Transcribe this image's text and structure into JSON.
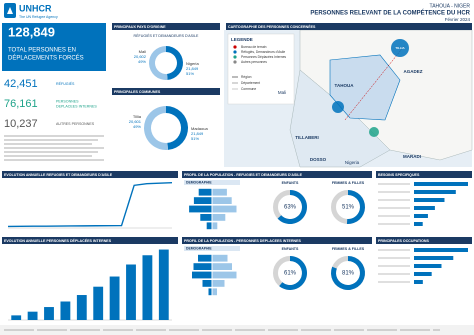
{
  "header": {
    "logo": "UNHCR",
    "logo_sub": "The UN Refugee Agency",
    "location": "TAHOUA - NIGER",
    "title": "PERSONNES RELEVANT DE LA COMPÉTENCE DU HCR",
    "date": "Février 2024"
  },
  "kpis": {
    "total": {
      "value": "128,849",
      "label": [
        "TOTAL PERSONNES EN",
        "DÉPLACEMENTS FORCÉS"
      ]
    },
    "items": [
      {
        "value": "42,451",
        "label": [
          "RÉFUGIÉS"
        ],
        "color": "#0072bc"
      },
      {
        "value": "76,161",
        "label": [
          "PERSONNES",
          "DEPLACEES INTERNES"
        ],
        "color": "#1fa38a"
      },
      {
        "value": "10,237",
        "label": [
          "AUTRES PERSONNES"
        ],
        "color": "#555555"
      }
    ]
  },
  "map": {
    "title": "CARTOGRAPHIE DES PERSONNES CONCERNÉES",
    "legend_title": "LEGENDE",
    "legend": [
      "Bureau de terrain",
      "Réfugiés, Demandeurs d'Asile",
      "Personnes Déplacées Internes",
      "Autres personnes",
      "Région",
      "Département",
      "Commune"
    ],
    "labels": [
      "AGADEZ",
      "TAHOUA",
      "Mali",
      "TILLABERI",
      "DOSSO",
      "MARADI",
      "Nigeria",
      "TILLIA"
    ]
  },
  "sections": {
    "profile_refugees": "PROFIL DE LA POPULATION - REFUGIES ET DEMANDEURS D'ASILE",
    "profile_idp": "PROFIL DE LA POPULATION - PERSONNES DEPLACEES INTERNES",
    "demography": "DEMOGRAPHIE",
    "needs": "BESOINS SPECIFIQUES",
    "occupations": "PRINCIPALES OCCUPATIONS"
  },
  "chart_data": [
    {
      "type": "pie",
      "title": "PRINCIPAUX PAYS D'ORIGINE",
      "subtitle": "RÉFUGIÉS ET DEMANDEURS D'ASILE",
      "categories": [
        "Mali",
        "Nigeria"
      ],
      "values": [
        20602,
        21849
      ],
      "value_labels": [
        "20,602",
        "21,849"
      ],
      "percent_labels": [
        "49%",
        "51%"
      ],
      "colors": [
        "#0072bc",
        "#9cc6e8"
      ]
    },
    {
      "type": "pie",
      "title": "PRINCIPALES COMMUNES",
      "categories": [
        "Tillia",
        "Madaoua"
      ],
      "values": [
        20601,
        21849
      ],
      "value_labels": [
        "20,601",
        "21,849"
      ],
      "percent_labels": [
        "49%",
        "51%"
      ],
      "colors": [
        "#0072bc",
        "#9cc6e8"
      ]
    },
    {
      "type": "line",
      "title": "EVOLUTION ANNUELLE REFUGIES ET DEMANDEURS D'ASILE",
      "values": [
        1500,
        1600,
        1700,
        1700,
        1800,
        1900,
        2000,
        2100,
        2200,
        2300,
        40000,
        41500,
        42000,
        42451
      ],
      "ylim": [
        0,
        45000
      ],
      "color": "#0072bc"
    },
    {
      "type": "bar",
      "title": "EVOLUTION ANNUELLE PERSONNES DÉPLACÉES INTERNES",
      "values": [
        5000,
        9000,
        14000,
        20000,
        27000,
        36000,
        47000,
        60000,
        70000,
        76161
      ],
      "ylim": [
        0,
        80000
      ],
      "color": "#0072bc"
    },
    {
      "type": "pyramid",
      "series": [
        {
          "values": [
            8,
            11,
            14,
            7,
            3
          ],
          "color": "#0072bc"
        },
        {
          "values": [
            9,
            12,
            15,
            8,
            3
          ],
          "color": "#9cc6e8"
        }
      ]
    },
    {
      "type": "donut",
      "title": "ENFANTS",
      "values": [
        63
      ],
      "value_labels": [
        "63%"
      ],
      "color": "#0072bc"
    },
    {
      "type": "donut",
      "title": "FEMMES & FILLES",
      "values": [
        51
      ],
      "value_labels": [
        "51%"
      ],
      "color": "#0072bc"
    },
    {
      "type": "pyramid",
      "series": [
        {
          "values": [
            9,
            12,
            13,
            6,
            2
          ],
          "color": "#0072bc"
        },
        {
          "values": [
            10,
            13,
            16,
            8,
            3
          ],
          "color": "#9cc6e8"
        }
      ]
    },
    {
      "type": "donut",
      "title": "ENFANTS",
      "values": [
        61
      ],
      "value_labels": [
        "61%"
      ],
      "color": "#0072bc"
    },
    {
      "type": "donut",
      "title": "FEMMES & FILLES",
      "values": [
        81
      ],
      "value_labels": [
        "81%"
      ],
      "color": "#0072bc"
    },
    {
      "type": "hbar",
      "values": [
        62,
        48,
        35,
        24,
        16,
        10
      ],
      "color": "#0072bc"
    },
    {
      "type": "hbar",
      "values": [
        55,
        40,
        28,
        18,
        9
      ],
      "color": "#0072bc"
    }
  ]
}
